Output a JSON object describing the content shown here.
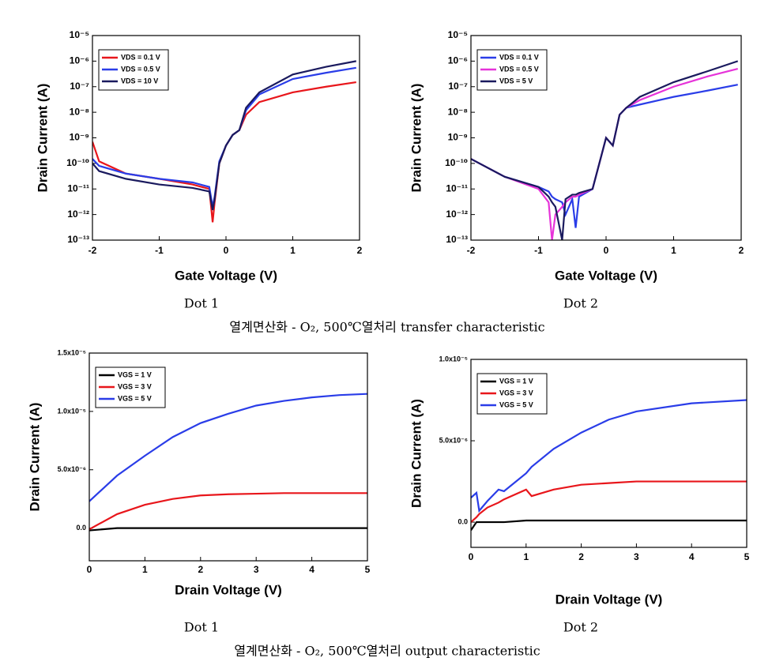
{
  "chart_data": [
    {
      "type": "line",
      "yscale": "log",
      "x_label": "Gate Voltage (V)",
      "y_label": "Drain Current (A)",
      "x": [
        -2,
        -1.9,
        -1.5,
        -1,
        -0.5,
        -0.25,
        -0.2,
        -0.17,
        -0.1,
        0,
        0.1,
        0.2,
        0.3,
        0.5,
        1,
        1.5,
        1.95
      ],
      "xlim": [
        -2,
        2
      ],
      "xticks": [
        -2,
        -1,
        0,
        1,
        2
      ],
      "ylim": [
        1e-13,
        1e-05
      ],
      "yticks": [
        {
          "value": 1e-13,
          "label": "10⁻¹³"
        },
        {
          "value": 1e-12,
          "label": "10⁻¹²"
        },
        {
          "value": 1e-11,
          "label": "10⁻¹¹"
        },
        {
          "value": 1e-10,
          "label": "10⁻¹⁰"
        },
        {
          "value": 1e-09,
          "label": "10⁻⁹"
        },
        {
          "value": 1e-08,
          "label": "10⁻⁸"
        },
        {
          "value": 1e-07,
          "label": "10⁻⁷"
        },
        {
          "value": 1e-06,
          "label": "10⁻⁶"
        },
        {
          "value": 1e-05,
          "label": "10⁻⁵"
        }
      ],
      "legend": "upper left",
      "series": [
        {
          "name": "VDS = 0.1 V",
          "color": "#e8161b",
          "values": [
            7e-10,
            1.2e-10,
            4e-11,
            2.5e-11,
            1.5e-11,
            1e-11,
            5e-13,
            3e-12,
            1e-10,
            5e-10,
            1.3e-09,
            2e-09,
            8e-09,
            2.5e-08,
            6e-08,
            1e-07,
            1.5e-07
          ]
        },
        {
          "name": "VDS = 0.5 V",
          "color": "#2a3de8",
          "values": [
            1.5e-10,
            8e-11,
            4e-11,
            2.5e-11,
            1.8e-11,
            1.2e-11,
            2e-12,
            5e-12,
            1.2e-10,
            5e-10,
            1.3e-09,
            2e-09,
            1.2e-08,
            5e-08,
            2e-07,
            3.5e-07,
            5.5e-07
          ]
        },
        {
          "name": "VDS = 10 V",
          "color": "#1a1a5e",
          "values": [
            1e-10,
            5e-11,
            2.5e-11,
            1.5e-11,
            1.1e-11,
            8e-12,
            1.5e-12,
            4e-12,
            1e-10,
            5e-10,
            1.3e-09,
            2e-09,
            1.5e-08,
            6e-08,
            3e-07,
            6e-07,
            1e-06
          ]
        }
      ]
    },
    {
      "type": "line",
      "yscale": "log",
      "x_label": "Gate Voltage (V)",
      "y_label": "Drain Current (A)",
      "x": [
        -2,
        -1.5,
        -1,
        -0.85,
        -0.8,
        -0.75,
        -0.65,
        -0.6,
        -0.5,
        -0.45,
        -0.4,
        -0.2,
        0,
        0.1,
        0.2,
        0.3,
        0.5,
        1,
        1.5,
        1.95
      ],
      "xlim": [
        -2,
        2
      ],
      "xticks": [
        -2,
        -1,
        0,
        1,
        2
      ],
      "ylim": [
        1e-13,
        1e-05
      ],
      "yticks": [
        {
          "value": 1e-13,
          "label": "10⁻¹³"
        },
        {
          "value": 1e-12,
          "label": "10⁻¹²"
        },
        {
          "value": 1e-11,
          "label": "10⁻¹¹"
        },
        {
          "value": 1e-10,
          "label": "10⁻¹⁰"
        },
        {
          "value": 1e-09,
          "label": "10⁻⁹"
        },
        {
          "value": 1e-08,
          "label": "10⁻⁸"
        },
        {
          "value": 1e-07,
          "label": "10⁻⁷"
        },
        {
          "value": 1e-06,
          "label": "10⁻⁶"
        },
        {
          "value": 1e-05,
          "label": "10⁻⁵"
        }
      ],
      "legend": "upper left",
      "series": [
        {
          "name": "VDS = 0.1 V",
          "color": "#2a3de8",
          "values": [
            1.5e-10,
            3e-11,
            1.2e-11,
            8e-12,
            5e-12,
            4e-12,
            3e-12,
            1e-12,
            4e-12,
            3e-13,
            5e-12,
            1e-11,
            1e-09,
            5e-10,
            8e-09,
            1.5e-08,
            2e-08,
            4e-08,
            7e-08,
            1.2e-07
          ]
        },
        {
          "name": "VDS = 0.5 V",
          "color": "#e633d9",
          "values": [
            1.5e-10,
            3e-11,
            1e-11,
            3e-12,
            1e-13,
            1e-12,
            2e-12,
            3e-12,
            5e-12,
            5e-12,
            6e-12,
            1e-11,
            1e-09,
            5e-10,
            8e-09,
            1.5e-08,
            3e-08,
            1e-07,
            2.5e-07,
            5e-07
          ]
        },
        {
          "name": "VDS = 5 V",
          "color": "#1a1a5e",
          "values": [
            1.5e-10,
            3e-11,
            1.2e-11,
            5e-12,
            3e-12,
            2e-12,
            1e-13,
            4e-12,
            6e-12,
            6e-12,
            7e-12,
            1e-11,
            1e-09,
            5e-10,
            8e-09,
            1.5e-08,
            4e-08,
            1.5e-07,
            4e-07,
            1e-06
          ]
        }
      ]
    },
    {
      "type": "line",
      "yscale": "linear",
      "x_label": "Drain Voltage (V)",
      "y_label": "Drain Current (A)",
      "x": [
        0,
        0.5,
        1,
        1.5,
        2,
        2.5,
        3,
        3.5,
        4,
        4.5,
        5
      ],
      "xlim": [
        0,
        5
      ],
      "xticks": [
        0,
        1,
        2,
        3,
        4,
        5
      ],
      "ylim": [
        -2.8e-06,
        1.5e-05
      ],
      "yticks": [
        {
          "value": 0,
          "label": "0.0"
        },
        {
          "value": 5e-06,
          "label": "5.0x10⁻⁶"
        },
        {
          "value": 1e-05,
          "label": "1.0x10⁻⁵"
        },
        {
          "value": 1.5e-05,
          "label": "1.5x10⁻⁵"
        }
      ],
      "legend": "upper left",
      "series": [
        {
          "name": "VGS = 1 V",
          "color": "#000000",
          "values": [
            -2e-07,
            0,
            0,
            0,
            0,
            0,
            0,
            0,
            0,
            0,
            0
          ]
        },
        {
          "name": "VGS = 3 V",
          "color": "#e8161b",
          "values": [
            -1e-07,
            1.2e-06,
            2e-06,
            2.5e-06,
            2.8e-06,
            2.9e-06,
            2.95e-06,
            3e-06,
            3e-06,
            3e-06,
            3e-06
          ]
        },
        {
          "name": "VGS = 5 V",
          "color": "#2a3de8",
          "values": [
            2.3e-06,
            4.5e-06,
            6.2e-06,
            7.8e-06,
            9e-06,
            9.8e-06,
            1.05e-05,
            1.09e-05,
            1.12e-05,
            1.14e-05,
            1.15e-05
          ]
        }
      ]
    },
    {
      "type": "line",
      "yscale": "linear",
      "x_label": "Drain Voltage (V)",
      "y_label": "Drain Current (A)",
      "x": [
        0,
        0.1,
        0.15,
        0.3,
        0.5,
        0.6,
        1,
        1.1,
        1.5,
        2,
        2.5,
        3,
        4,
        5
      ],
      "xlim": [
        0,
        5
      ],
      "xticks": [
        0,
        1,
        2,
        3,
        4,
        5
      ],
      "ylim": [
        -1.55e-06,
        1e-05
      ],
      "yticks": [
        {
          "value": 0,
          "label": "0.0"
        },
        {
          "value": 5e-06,
          "label": "5.0x10⁻⁶"
        },
        {
          "value": 1e-05,
          "label": "1.0x10⁻⁵"
        }
      ],
      "legend": "upper left",
      "series": [
        {
          "name": "VGS = 1 V",
          "color": "#000000",
          "values": [
            -5e-07,
            0,
            0,
            0,
            0,
            0,
            1e-07,
            1e-07,
            1e-07,
            1e-07,
            1e-07,
            1e-07,
            1e-07,
            1e-07
          ]
        },
        {
          "name": "VGS = 3 V",
          "color": "#e8161b",
          "values": [
            0,
            3e-07,
            5e-07,
            9e-07,
            1.2e-06,
            1.4e-06,
            2e-06,
            1.6e-06,
            2e-06,
            2.3e-06,
            2.4e-06,
            2.5e-06,
            2.5e-06,
            2.5e-06
          ]
        },
        {
          "name": "VGS = 5 V",
          "color": "#2a3de8",
          "values": [
            1.5e-06,
            1.8e-06,
            7e-07,
            1.3e-06,
            2e-06,
            1.9e-06,
            3e-06,
            3.4e-06,
            4.5e-06,
            5.5e-06,
            6.3e-06,
            6.8e-06,
            7.3e-06,
            7.5e-06
          ]
        }
      ]
    }
  ],
  "captions": [
    "Dot 1",
    "Dot 2",
    "열계면산화 - O₂, 500℃열처리  transfer characteristic",
    "Dot 1",
    "Dot 2",
    "열계면산화 - O₂, 500℃열처리  output characteristic"
  ]
}
